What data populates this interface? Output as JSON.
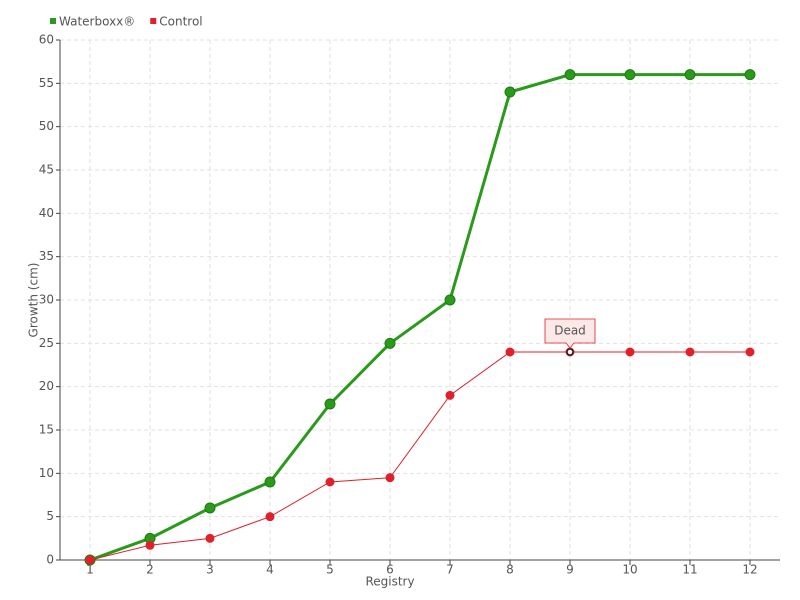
{
  "chart_data": {
    "type": "line",
    "x_label": "Registry",
    "y_label": "Growth (cm)",
    "categories": [
      "1",
      "2",
      "3",
      "4",
      "5",
      "6",
      "7",
      "8",
      "9",
      "10",
      "11",
      "12"
    ],
    "series": [
      {
        "name": "Waterboxx®",
        "color": "#2a9a1a",
        "values": [
          0,
          2.5,
          6,
          9,
          18,
          25,
          30,
          54,
          56,
          56,
          56,
          56
        ]
      },
      {
        "name": "Control",
        "color": "#e0202a",
        "values": [
          0,
          1.7,
          2.5,
          5,
          9,
          9.5,
          19,
          24,
          24,
          24,
          24,
          24
        ]
      }
    ],
    "annotations": [
      {
        "text": "Dead",
        "x": "9"
      }
    ],
    "ylim": [
      0,
      60
    ],
    "yticks": [
      0,
      5,
      10,
      15,
      20,
      25,
      30,
      35,
      40,
      45,
      50,
      55,
      60
    ],
    "grid": true,
    "legend": "top-left"
  }
}
